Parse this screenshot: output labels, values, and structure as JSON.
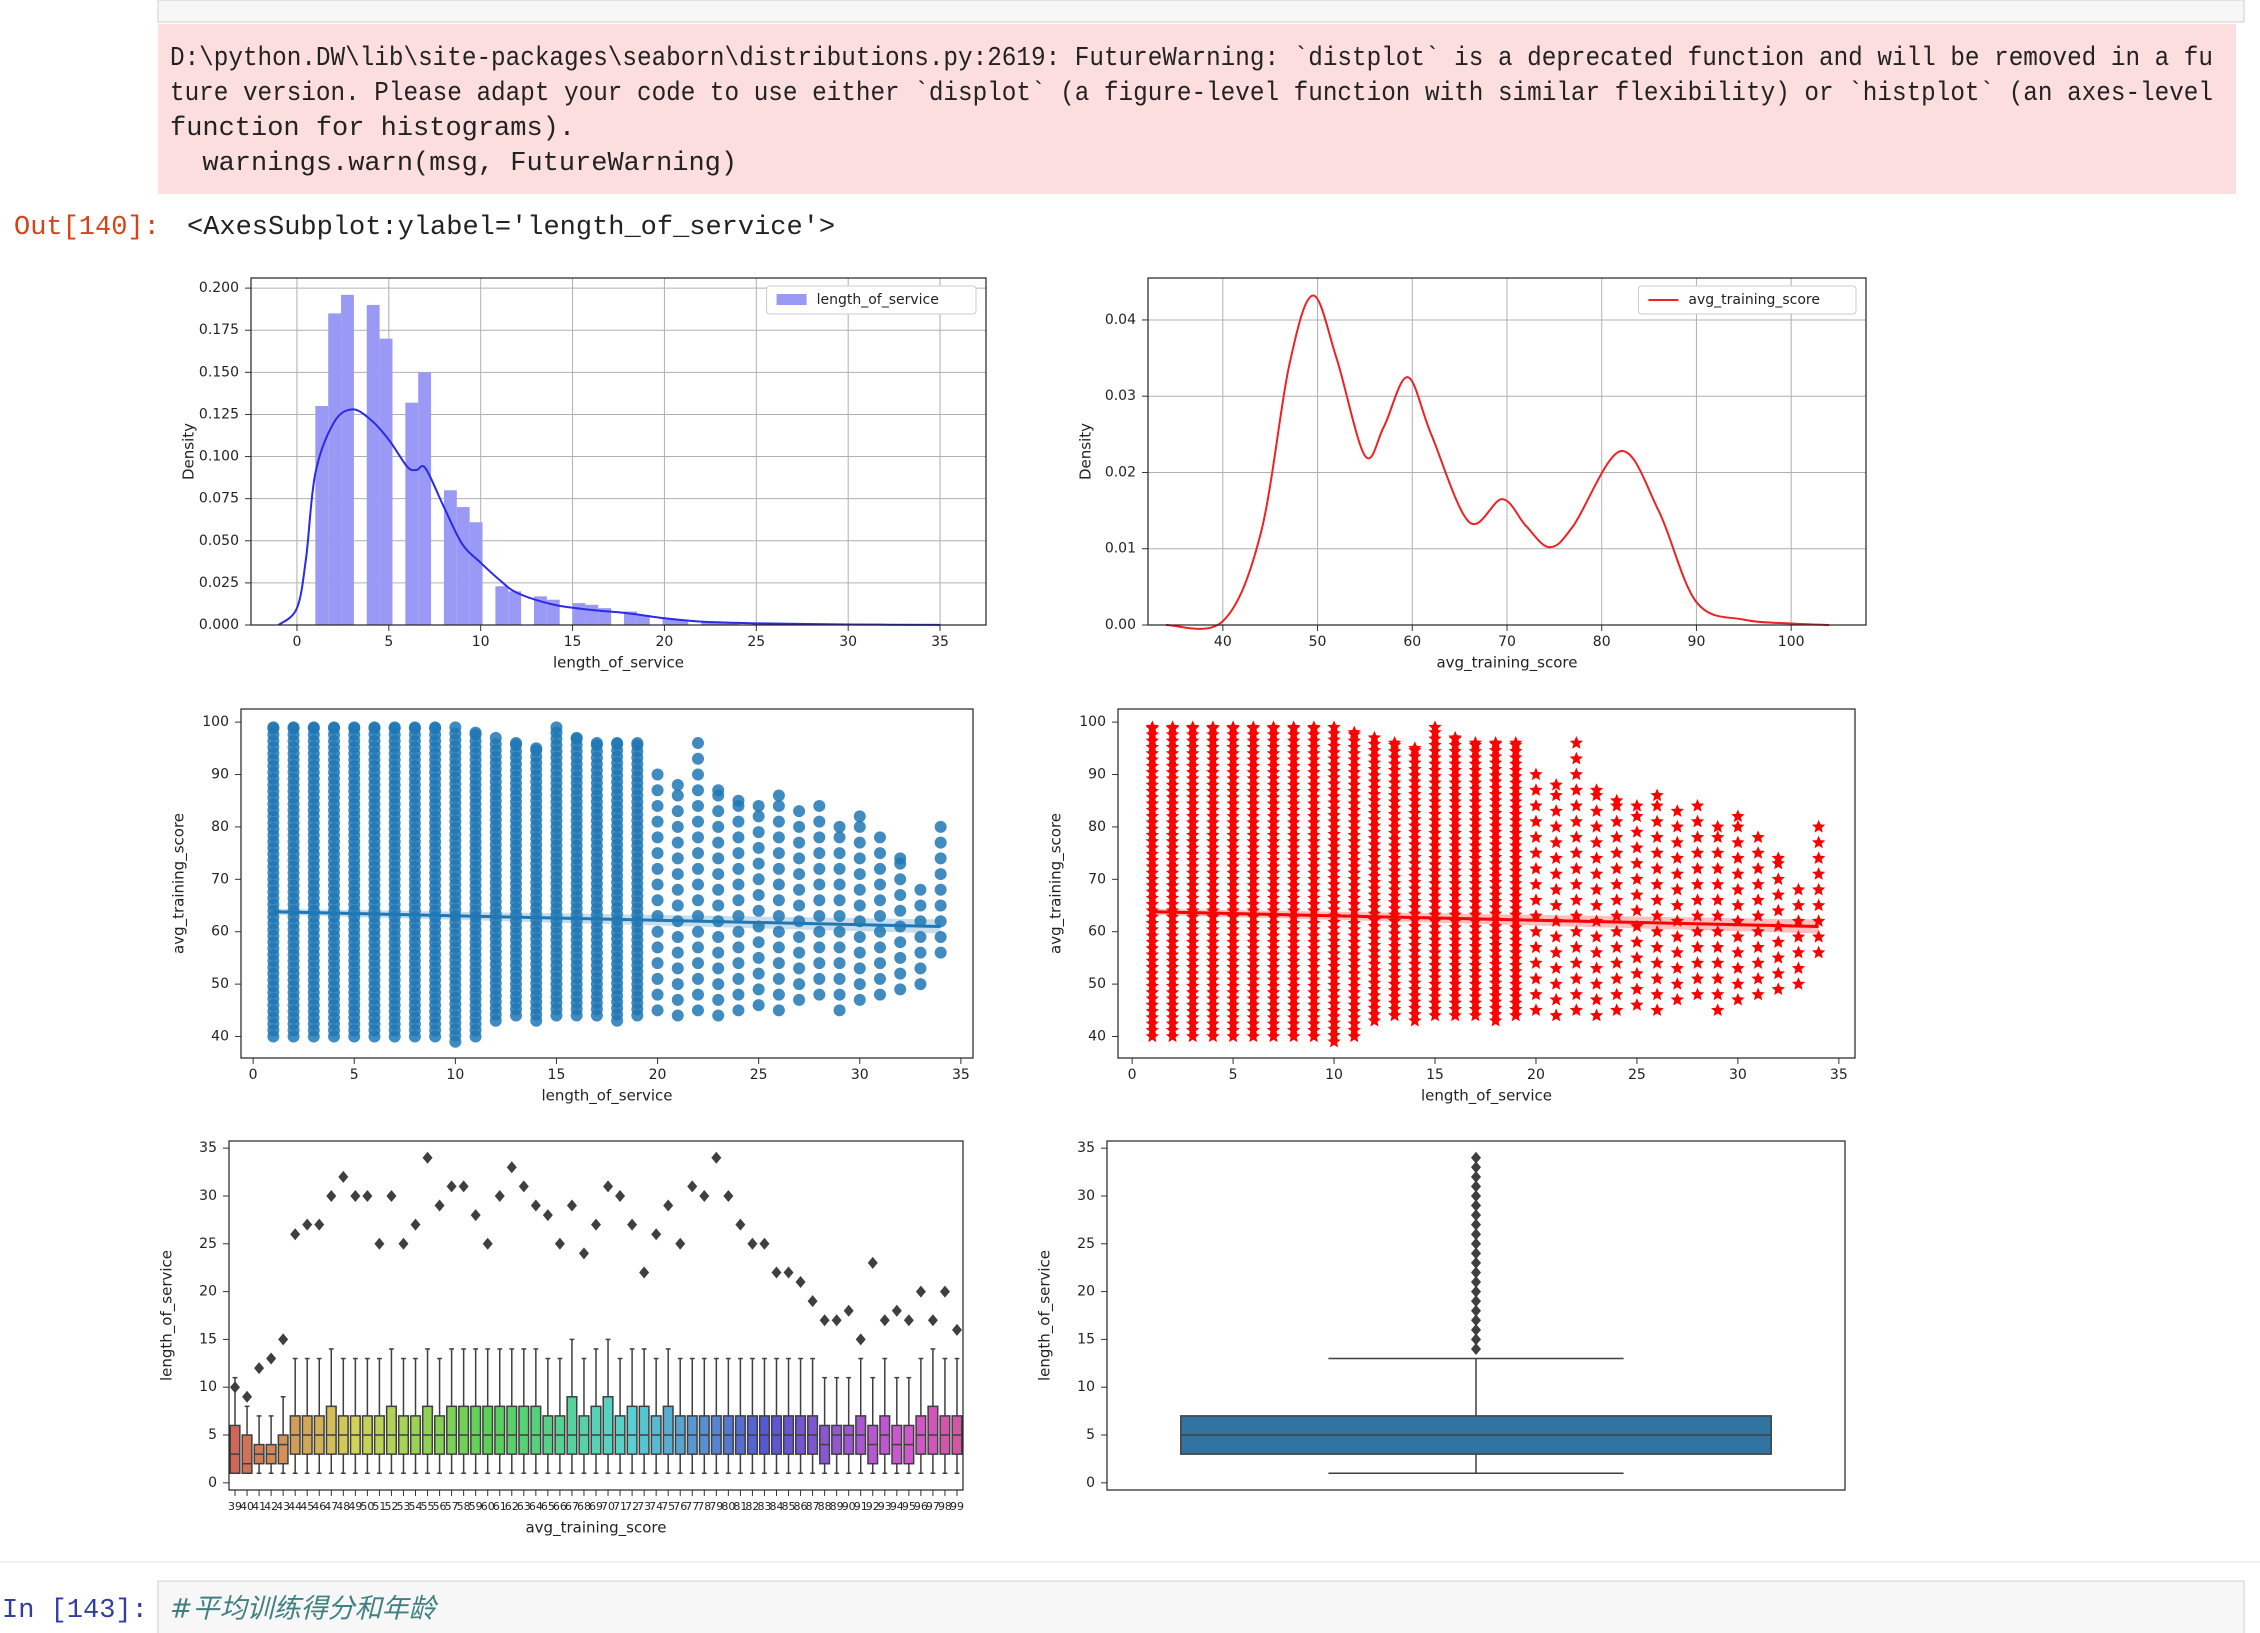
{
  "notebook": {
    "warning": [
      "D:\\python.DW\\lib\\site-packages\\seaborn\\distributions.py:2619: FutureWarning: `distplot` is a deprecated function and will be removed in a fu",
      "ture version. Please adapt your code to use either `displot` (a figure-level function with similar flexibility) or `histplot` (an axes-level",
      "function for histograms).",
      "  warnings.warn(msg, FutureWarning)"
    ],
    "out_prompt": "Out[140]:",
    "out_text": "<AxesSubplot:ylabel='length_of_service'>",
    "in_prompt": "In [143]:",
    "code": "#平均训练得分和年龄"
  },
  "chart_data": [
    {
      "type": "histogram",
      "xlabel": "length_of_service",
      "ylabel": "Density",
      "grid": true,
      "legend": "upper right",
      "xlim": [
        -2.5,
        37.5
      ],
      "xticks": [
        0,
        5,
        10,
        15,
        20,
        25,
        30,
        35
      ],
      "ylim": [
        0,
        0.206
      ],
      "yticks": [
        {
          "value": 0,
          "label": "0.000"
        },
        {
          "value": 0.025,
          "label": "0.025"
        },
        {
          "value": 0.05,
          "label": "0.050"
        },
        {
          "value": 0.075,
          "label": "0.075"
        },
        {
          "value": 0.1,
          "label": "0.100"
        },
        {
          "value": 0.125,
          "label": "0.125"
        },
        {
          "value": 0.15,
          "label": "0.150"
        },
        {
          "value": 0.175,
          "label": "0.175"
        },
        {
          "value": 0.2,
          "label": "0.200"
        }
      ],
      "bins": [
        1,
        1.7,
        2.4,
        3.1,
        3.8,
        4.5,
        5.2,
        5.9,
        6.6,
        7.3,
        8,
        8.7,
        9.4,
        10.1,
        10.8,
        11.5,
        12.2,
        12.9,
        13.6,
        14.3,
        15,
        15.7,
        16.4,
        17.1,
        17.8,
        18.5,
        19.2,
        19.9,
        20.6,
        21.3,
        22,
        22.7,
        23.4,
        24.1,
        24.8,
        25.5,
        26.2,
        26.9,
        27.6,
        28.3,
        29,
        29.7,
        30.4,
        31.1,
        31.8,
        32.5,
        33.2,
        33.9,
        34.6
      ],
      "series": [
        {
          "name": "length_of_service",
          "color": "#9a9af6",
          "values": [
            0.13,
            0.185,
            0.196,
            0,
            0.19,
            0.17,
            0,
            0.132,
            0.15,
            0,
            0.08,
            0.07,
            0.061,
            0,
            0.023,
            0.02,
            0,
            0.017,
            0.015,
            0,
            0.013,
            0.012,
            0.01,
            0,
            0.008,
            0.006,
            0,
            0.004,
            0.003,
            0,
            0.002,
            0.002,
            0.001,
            0,
            0.001,
            0.001,
            0,
            0.001,
            0.0005,
            0,
            0.0005,
            0.0005,
            0.0005,
            0,
            0.0005,
            0.0005,
            0,
            0.0005
          ]
        }
      ],
      "kde": {
        "color": "#2a2ae8",
        "x": [
          -1,
          0,
          0.5,
          1,
          2,
          3,
          4,
          5,
          6,
          6.5,
          7,
          8,
          9,
          10,
          11,
          12,
          14,
          16,
          18,
          20,
          22,
          25,
          30,
          35
        ],
        "values": [
          0,
          0.01,
          0.04,
          0.09,
          0.12,
          0.128,
          0.122,
          0.11,
          0.094,
          0.092,
          0.093,
          0.07,
          0.048,
          0.037,
          0.027,
          0.019,
          0.012,
          0.009,
          0.007,
          0.004,
          0.002,
          0.001,
          0.0003,
          0.0001
        ]
      }
    },
    {
      "type": "line",
      "xlabel": "avg_training_score",
      "ylabel": "Density",
      "grid": true,
      "legend": "upper right",
      "xlim": [
        32.1,
        107.9
      ],
      "xticks": [
        40,
        50,
        60,
        70,
        80,
        90,
        100
      ],
      "ylim": [
        0,
        0.0455
      ],
      "yticks": [
        {
          "value": 0,
          "label": "0.00"
        },
        {
          "value": 0.01,
          "label": "0.01"
        },
        {
          "value": 0.02,
          "label": "0.02"
        },
        {
          "value": 0.03,
          "label": "0.03"
        },
        {
          "value": 0.04,
          "label": "0.04"
        }
      ],
      "x": [
        34,
        40,
        44,
        47,
        49.5,
        52,
        55,
        57,
        59.5,
        62,
        66,
        69.5,
        72,
        74.5,
        77,
        82,
        86,
        90,
        95,
        100,
        104
      ],
      "series": [
        {
          "name": "avg_training_score",
          "color": "#ee2222",
          "values": [
            0,
            0.0005,
            0.012,
            0.034,
            0.0432,
            0.035,
            0.0222,
            0.026,
            0.0325,
            0.025,
            0.0135,
            0.0165,
            0.013,
            0.0102,
            0.013,
            0.0228,
            0.015,
            0.003,
            0.0007,
            0.0002,
            0
          ]
        }
      ]
    },
    {
      "type": "scatter-range",
      "xlabel": "length_of_service",
      "ylabel": "avg_training_score",
      "color": "#1f77b4",
      "marker": "o",
      "xlim": [
        -0.6,
        35.6
      ],
      "xticks": [
        0,
        5,
        10,
        15,
        20,
        25,
        30,
        35
      ],
      "ylim": [
        35.9,
        102.5
      ],
      "yticks": [
        40,
        50,
        60,
        70,
        80,
        90,
        100
      ],
      "x": [
        1,
        2,
        3,
        4,
        5,
        6,
        7,
        8,
        9,
        10,
        11,
        12,
        13,
        14,
        15,
        16,
        17,
        18,
        19,
        20,
        21,
        22,
        23,
        24,
        25,
        26,
        27,
        28,
        29,
        30,
        31,
        32,
        33,
        34
      ],
      "ymin": [
        40,
        40,
        40,
        40,
        40,
        40,
        40,
        40,
        40,
        39,
        40,
        43,
        44,
        43,
        44,
        44,
        44,
        43,
        44,
        45,
        44,
        45,
        44,
        45,
        46,
        45,
        47,
        48,
        45,
        47,
        48,
        49,
        50,
        56
      ],
      "ymax": [
        99,
        99,
        99,
        99,
        99,
        99,
        99,
        99,
        99,
        99,
        98,
        97,
        96,
        95,
        99,
        97,
        96,
        96,
        96,
        90,
        88,
        96,
        87,
        85,
        84,
        86,
        83,
        84,
        80,
        82,
        78,
        74,
        68,
        80
      ],
      "fit": {
        "x": [
          1,
          34
        ],
        "values": [
          63.8,
          61
        ]
      }
    },
    {
      "type": "scatter-range",
      "xlabel": "length_of_service",
      "ylabel": "avg_training_score",
      "color": "#ff0000",
      "marker": "*",
      "xlim": [
        -0.7,
        35.8
      ],
      "xticks": [
        0,
        5,
        10,
        15,
        20,
        25,
        30,
        35
      ],
      "ylim": [
        35.9,
        102.5
      ],
      "yticks": [
        40,
        50,
        60,
        70,
        80,
        90,
        100
      ],
      "x": [
        1,
        2,
        3,
        4,
        5,
        6,
        7,
        8,
        9,
        10,
        11,
        12,
        13,
        14,
        15,
        16,
        17,
        18,
        19,
        20,
        21,
        22,
        23,
        24,
        25,
        26,
        27,
        28,
        29,
        30,
        31,
        32,
        33,
        34
      ],
      "ymin": [
        40,
        40,
        40,
        40,
        40,
        40,
        40,
        40,
        40,
        39,
        40,
        43,
        44,
        43,
        44,
        44,
        44,
        43,
        44,
        45,
        44,
        45,
        44,
        45,
        46,
        45,
        47,
        48,
        45,
        47,
        48,
        49,
        50,
        56
      ],
      "ymax": [
        99,
        99,
        99,
        99,
        99,
        99,
        99,
        99,
        99,
        99,
        98,
        97,
        96,
        95,
        99,
        97,
        96,
        96,
        96,
        90,
        88,
        96,
        87,
        85,
        84,
        86,
        83,
        84,
        80,
        82,
        78,
        74,
        68,
        80
      ],
      "fit": {
        "x": [
          1,
          34
        ],
        "values": [
          63.8,
          61
        ]
      }
    },
    {
      "type": "boxplot",
      "xlabel": "avg_training_score",
      "ylabel": "length_of_service",
      "palette": "husl",
      "ylim": [
        -0.75,
        35.75
      ],
      "yticks": [
        0,
        5,
        10,
        15,
        20,
        25,
        30,
        35
      ],
      "categories": [
        39,
        40,
        41,
        42,
        43,
        44,
        45,
        46,
        47,
        48,
        49,
        50,
        51,
        52,
        53,
        54,
        55,
        56,
        57,
        58,
        59,
        60,
        61,
        62,
        63,
        64,
        65,
        66,
        67,
        68,
        69,
        70,
        71,
        72,
        73,
        74,
        75,
        76,
        77,
        78,
        79,
        80,
        81,
        82,
        83,
        84,
        85,
        86,
        87,
        88,
        89,
        90,
        91,
        92,
        93,
        94,
        95,
        96,
        97,
        98,
        99
      ],
      "q1": [
        1,
        1,
        2,
        2,
        2,
        3,
        3,
        3,
        3,
        3,
        3,
        3,
        3,
        3,
        3,
        3,
        3,
        3,
        3,
        3,
        3,
        3,
        3,
        3,
        3,
        3,
        3,
        3,
        3,
        3,
        3,
        3,
        3,
        3,
        3,
        3,
        3,
        3,
        3,
        3,
        3,
        3,
        3,
        3,
        3,
        3,
        3,
        3,
        3,
        2,
        3,
        3,
        3,
        2,
        3,
        2,
        2,
        3,
        3,
        3,
        3
      ],
      "median": [
        3,
        2,
        3,
        3,
        4,
        5,
        5,
        5,
        5,
        5,
        5,
        5,
        5,
        5,
        5,
        5,
        5,
        5,
        5,
        5,
        5,
        5,
        5,
        5,
        5,
        5,
        5,
        5,
        5,
        5,
        5,
        5,
        5,
        5,
        5,
        5,
        5,
        5,
        5,
        5,
        5,
        5,
        5,
        5,
        5,
        5,
        5,
        5,
        5,
        4,
        5,
        5,
        5,
        4,
        5,
        4,
        4,
        5,
        5,
        5,
        5
      ],
      "q3": [
        6,
        5,
        4,
        4,
        5,
        7,
        7,
        7,
        8,
        7,
        7,
        7,
        7,
        8,
        7,
        7,
        8,
        7,
        8,
        8,
        8,
        8,
        8,
        8,
        8,
        8,
        7,
        7,
        9,
        7,
        8,
        9,
        7,
        8,
        8,
        7,
        8,
        7,
        7,
        7,
        7,
        7,
        7,
        7,
        7,
        7,
        7,
        7,
        7,
        6,
        6,
        6,
        7,
        6,
        7,
        6,
        6,
        7,
        8,
        7,
        7
      ],
      "whislo": [
        1,
        1,
        1,
        1,
        1,
        1,
        1,
        1,
        1,
        1,
        1,
        1,
        1,
        1,
        1,
        1,
        1,
        1,
        1,
        1,
        1,
        1,
        1,
        1,
        1,
        1,
        1,
        1,
        1,
        1,
        1,
        1,
        1,
        1,
        1,
        1,
        1,
        1,
        1,
        1,
        1,
        1,
        1,
        1,
        1,
        1,
        1,
        1,
        1,
        1,
        1,
        1,
        1,
        1,
        1,
        1,
        1,
        1,
        1,
        1,
        1
      ],
      "whishi": [
        11,
        8,
        7,
        7,
        9,
        13,
        13,
        13,
        14,
        13,
        13,
        13,
        13,
        14,
        13,
        13,
        14,
        13,
        14,
        14,
        14,
        14,
        14,
        14,
        14,
        14,
        13,
        13,
        15,
        13,
        14,
        15,
        13,
        14,
        14,
        13,
        14,
        13,
        13,
        13,
        13,
        13,
        13,
        13,
        13,
        13,
        13,
        13,
        13,
        11,
        11,
        11,
        13,
        11,
        13,
        11,
        11,
        13,
        14,
        13,
        13
      ],
      "fliers": [
        [
          10
        ],
        [
          9
        ],
        [
          12
        ],
        [
          13
        ],
        [
          15
        ],
        [
          26
        ],
        [
          27
        ],
        [
          27
        ],
        [
          30
        ],
        [
          32
        ],
        [
          30
        ],
        [
          30
        ],
        [
          25
        ],
        [
          30
        ],
        [
          25
        ],
        [
          27
        ],
        [
          34
        ],
        [
          29
        ],
        [
          31
        ],
        [
          31
        ],
        [
          28
        ],
        [
          25
        ],
        [
          30
        ],
        [
          33
        ],
        [
          31
        ],
        [
          29
        ],
        [
          28
        ],
        [
          25
        ],
        [
          29
        ],
        [
          24
        ],
        [
          27
        ],
        [
          31
        ],
        [
          30
        ],
        [
          27
        ],
        [
          22
        ],
        [
          26
        ],
        [
          29
        ],
        [
          25
        ],
        [
          31
        ],
        [
          30
        ],
        [
          34
        ],
        [
          30
        ],
        [
          27
        ],
        [
          25
        ],
        [
          25
        ],
        [
          22
        ],
        [
          22
        ],
        [
          21
        ],
        [
          19
        ],
        [
          17
        ],
        [
          17
        ],
        [
          18
        ],
        [
          15
        ],
        [
          23
        ],
        [
          17
        ],
        [
          18
        ],
        [
          17
        ],
        [
          20
        ],
        [
          17
        ],
        [
          20
        ],
        [
          16
        ]
      ]
    },
    {
      "type": "boxplot",
      "ylabel": "length_of_service",
      "color": "#3274a1",
      "ylim": [
        -0.75,
        35.75
      ],
      "yticks": [
        0,
        5,
        10,
        15,
        20,
        25,
        30,
        35
      ],
      "q1": [
        3
      ],
      "median": [
        5
      ],
      "q3": [
        7
      ],
      "whislo": [
        1
      ],
      "whishi": [
        13
      ],
      "fliers": [
        [
          14,
          15,
          16,
          17,
          18,
          19,
          20,
          21,
          22,
          23,
          24,
          25,
          26,
          27,
          28,
          29,
          30,
          31,
          32,
          33,
          34
        ]
      ]
    }
  ]
}
